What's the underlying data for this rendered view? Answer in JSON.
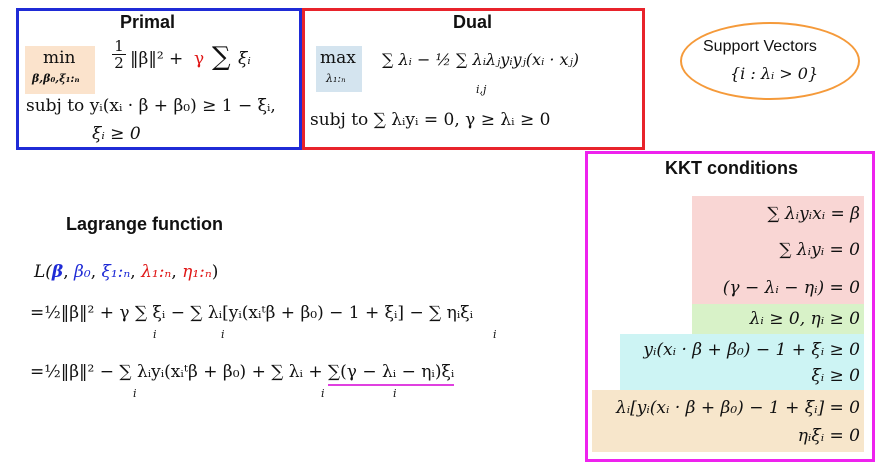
{
  "primal": {
    "title": "Primal",
    "min_label": "min",
    "min_sub": "β,β₀,ξ₁:ₙ",
    "objective_frac": "1/2",
    "objective_norm": "‖β‖² +",
    "gamma": "γ",
    "sum": "∑",
    "xi": "ξᵢ",
    "constraint1": "subj to yᵢ(xᵢ · β + β₀) ≥ 1 − ξᵢ,",
    "constraint2": "ξᵢ ≥ 0"
  },
  "dual": {
    "title": "Dual",
    "max_label": "max",
    "max_sub": "λ₁:ₙ",
    "objective": "∑ λᵢ − ½ ∑ λᵢλⱼyᵢyⱼ(xᵢ · xⱼ)",
    "objective_sub": "i,j",
    "constraint": "subj to ∑ λᵢyᵢ = 0,  γ ≥ λᵢ ≥ 0"
  },
  "support_vectors": {
    "title": "Support Vectors",
    "set": "{i : λᵢ > 0}"
  },
  "lagrange": {
    "title": "Lagrange function",
    "lhs_L": "L(",
    "arg_beta": "β",
    "arg_beta0": "β₀",
    "arg_xi": "ξ₁:ₙ",
    "arg_lambda": "λ₁:ₙ",
    "arg_eta": "η₁:ₙ",
    "line2": "=½‖β‖² + γ ∑ ξᵢ − ∑ λᵢ[yᵢ(xᵢᵗβ + β₀) − 1 + ξᵢ] − ∑ ηᵢξᵢ",
    "line2_subs": "i",
    "line3_main": "=½‖β‖² − ∑ λᵢyᵢ(xᵢᵗβ + β₀) + ∑ λᵢ + ",
    "line3_underlined": "∑(γ − λᵢ − ηᵢ)ξᵢ",
    "line3_subs": "i"
  },
  "kkt": {
    "title": "KKT conditions",
    "row1": "∑ λᵢyᵢxᵢ = β",
    "row2": "∑ λᵢyᵢ = 0",
    "row3": "(γ − λᵢ − ηᵢ) = 0",
    "row4": "λᵢ ≥ 0,  ηᵢ ≥ 0",
    "row5": "yᵢ(xᵢ · β + β₀) − 1 + ξᵢ ≥ 0",
    "row6": "ξᵢ ≥ 0",
    "row7": "λᵢ[yᵢ(xᵢ · β + β₀) − 1 + ξᵢ] = 0",
    "row8": "ηᵢξᵢ = 0"
  },
  "colors": {
    "primal_border": "#1f2bd6",
    "dual_border": "#e8232b",
    "kkt_border": "#ee22ee",
    "oval_border": "#f59a3a",
    "peach": "#fbe3cc",
    "blue_shade": "#d4e4ef",
    "pink": "#f9d6d4",
    "green": "#d8f2c8",
    "cyan": "#cdf4f4",
    "tan": "#f7e6cb",
    "underline": "#e040e0"
  }
}
